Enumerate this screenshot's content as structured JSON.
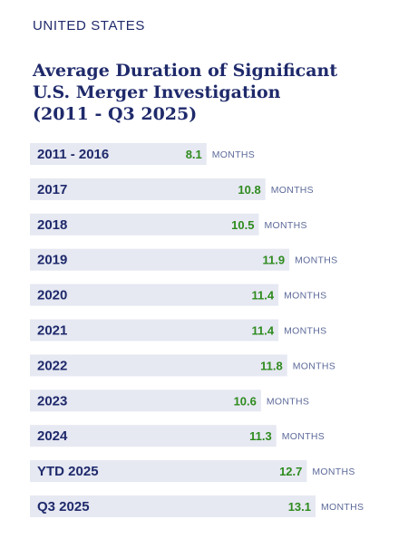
{
  "header": {
    "eyebrow": "UNITED STATES",
    "title_lines": [
      "Average Duration of Significant",
      "U.S. Merger Investigation",
      "(2011 - Q3 2025)"
    ]
  },
  "colors": {
    "bar": "#e6e8f2",
    "category_text": "#1f2a6b",
    "value_text": "#2e8b1e",
    "unit_text": "#5d6a9a",
    "title_text": "#1f2a6b"
  },
  "chart_data": {
    "type": "bar",
    "orientation": "horizontal",
    "title": "Average Duration of Significant U.S. Merger Investigation (2011 - Q3 2025)",
    "categories": [
      "2011 - 2016",
      "2017",
      "2018",
      "2019",
      "2020",
      "2021",
      "2022",
      "2023",
      "2024",
      "YTD 2025",
      "Q3 2025"
    ],
    "values": [
      8.1,
      10.8,
      10.5,
      11.9,
      11.4,
      11.4,
      11.8,
      10.6,
      11.3,
      12.7,
      13.1
    ],
    "unit_label": "MONTHS",
    "xlim": [
      0,
      13.1
    ]
  }
}
